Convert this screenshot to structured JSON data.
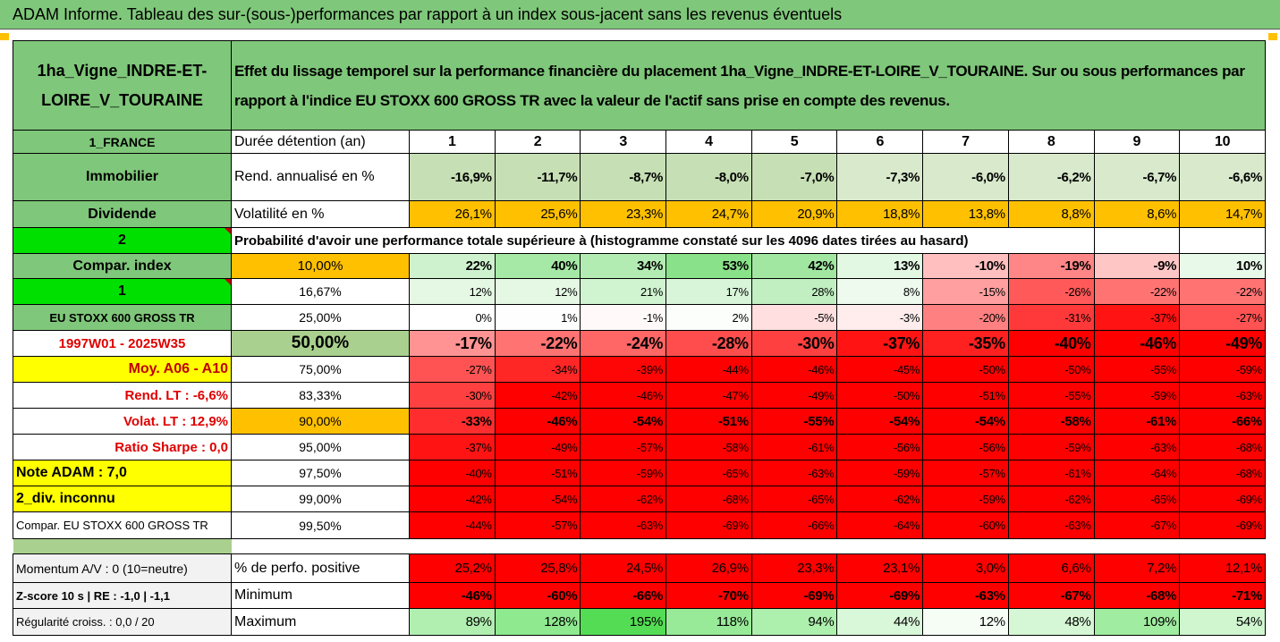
{
  "header": {
    "title": "ADAM Informe. Tableau des sur-(sous-)performances par rapport à un index sous-jacent sans les revenus éventuels"
  },
  "table": {
    "asset": "1ha_Vigne_INDRE-ET-LOIRE_V_TOURAINE",
    "description": "Effet du lissage temporel sur la performance financière du placement 1ha_Vigne_INDRE-ET-LOIRE_V_TOURAINE. Sur ou sous performances par rapport à l'indice EU STOXX 600 GROSS TR avec la valeur de l'actif sans prise en compte des revenus.",
    "rows": [
      [
        "1_FRANCE",
        "Durée détention (an)",
        1,
        2,
        3,
        4,
        5,
        6,
        7,
        8,
        9,
        10
      ],
      [
        "Immobilier",
        "Rend. annualisé en %",
        "-16,9%",
        "-11,7%",
        "-8,7%",
        "-8,0%",
        "-7,0%",
        "-7,3%",
        "-6,0%",
        "-6,2%",
        "-6,7%",
        "-6,6%"
      ],
      [
        "Dividende",
        "Volatilité en %",
        "26,1%",
        "25,6%",
        "23,3%",
        "24,7%",
        "20,9%",
        "18,8%",
        "13,8%",
        "8,8%",
        "8,6%",
        "14,7%"
      ],
      [
        "2",
        "Probabilité d'avoir une performance totale supérieure à (histogramme constaté sur les 4096 dates tirées au hasard)"
      ],
      [
        "Compar. index",
        "10,00%",
        "22%",
        "40%",
        "34%",
        "53%",
        "42%",
        "13%",
        "-10%",
        "-19%",
        "-9%",
        "10%"
      ],
      [
        "1",
        "16,67%",
        "12%",
        "12%",
        "21%",
        "17%",
        "28%",
        "8%",
        "-15%",
        "-26%",
        "-22%",
        "-22%"
      ],
      [
        "EU STOXX 600 GROSS TR",
        "25,00%",
        "0%",
        "1%",
        "-1%",
        "2%",
        "-5%",
        "-3%",
        "-20%",
        "-31%",
        "-37%",
        "-27%"
      ],
      [
        "1997W01 - 2025W35",
        "50,00%",
        "-17%",
        "-22%",
        "-24%",
        "-28%",
        "-30%",
        "-37%",
        "-35%",
        "-40%",
        "-46%",
        "-49%"
      ],
      [
        "Moy. A06 - A10",
        "75,00%",
        "-27%",
        "-34%",
        "-39%",
        "-44%",
        "-46%",
        "-45%",
        "-50%",
        "-50%",
        "-55%",
        "-59%"
      ],
      [
        "Rend. LT :   -6,6%",
        "83,33%",
        "-30%",
        "-42%",
        "-46%",
        "-47%",
        "-49%",
        "-50%",
        "-51%",
        "-55%",
        "-59%",
        "-63%"
      ],
      [
        "Volat. LT :   12,9%",
        "90,00%",
        "-33%",
        "-46%",
        "-54%",
        "-51%",
        "-55%",
        "-54%",
        "-54%",
        "-58%",
        "-61%",
        "-66%"
      ],
      [
        "Ratio Sharpe :    0,0",
        "95,00%",
        "-37%",
        "-49%",
        "-57%",
        "-58%",
        "-61%",
        "-56%",
        "-56%",
        "-59%",
        "-63%",
        "-68%"
      ],
      [
        "Note ADAM : 7,0",
        "97,50%",
        "-40%",
        "-51%",
        "-59%",
        "-65%",
        "-63%",
        "-59%",
        "-57%",
        "-61%",
        "-64%",
        "-68%"
      ],
      [
        "2_div. inconnu",
        "99,00%",
        "-42%",
        "-54%",
        "-62%",
        "-68%",
        "-65%",
        "-62%",
        "-59%",
        "-62%",
        "-65%",
        "-69%"
      ],
      [
        "Compar. EU STOXX 600 GROSS TR",
        "99,50%",
        "-44%",
        "-57%",
        "-63%",
        "-69%",
        "-66%",
        "-64%",
        "-60%",
        "-63%",
        "-67%",
        "-69%"
      ],
      [
        "Momentum A/V : 0 (10=neutre)",
        "% de perfo. positive",
        "25,2%",
        "25,8%",
        "24,5%",
        "26,9%",
        "23,3%",
        "23,1%",
        "3,0%",
        "6,6%",
        "7,2%",
        "12,1%"
      ],
      [
        "Z-score 10 s | RE : -1,0 | -1,1",
        "Minimum",
        "-46%",
        "-60%",
        "-66%",
        "-70%",
        "-69%",
        "-69%",
        "-63%",
        "-67%",
        "-68%",
        "-71%"
      ],
      [
        "Régularité croiss. : 0,0 / 20",
        "Maximum",
        "89%",
        "128%",
        "195%",
        "118%",
        "94%",
        "44%",
        "12%",
        "48%",
        "109%",
        "54%"
      ]
    ]
  }
}
